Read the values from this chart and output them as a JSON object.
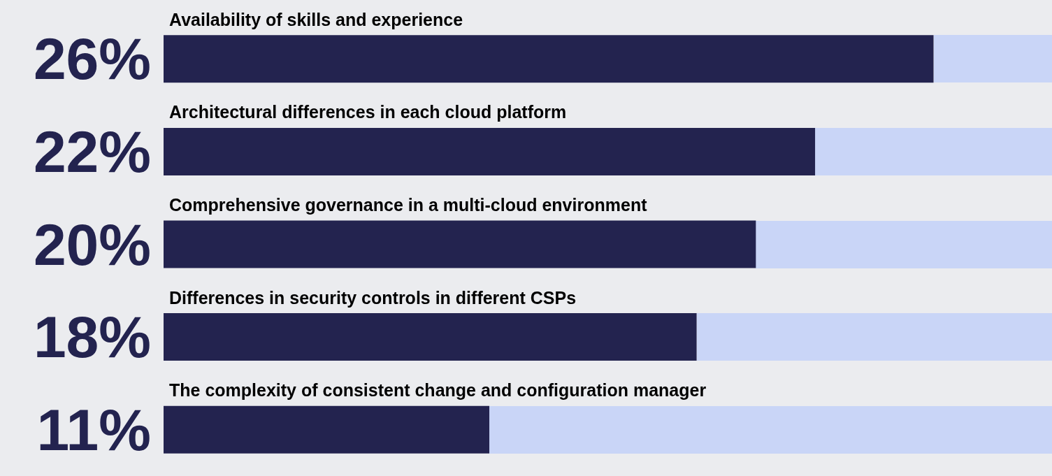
{
  "chart_data": {
    "type": "bar",
    "orientation": "horizontal",
    "categories": [
      "Availability of skills and experience",
      "Architectural differences in each cloud platform",
      "Comprehensive governance in a multi-cloud environment",
      "Differences in security controls in different CSPs",
      "The complexity of consistent change and configuration manager"
    ],
    "values": [
      26,
      22,
      20,
      18,
      11
    ],
    "color": "#23234f",
    "xlim": [
      0,
      30
    ],
    "tick_labels": false,
    "value_labels": [
      "26%",
      "22%",
      "20%",
      "18%",
      "11%"
    ],
    "grid": false
  }
}
